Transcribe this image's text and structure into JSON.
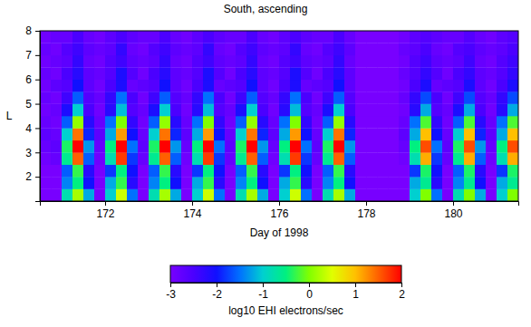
{
  "chart_data": {
    "type": "heatmap",
    "title": "South, ascending",
    "x_label": "Day of 1998",
    "y_label": "L",
    "xlim": [
      170.5,
      181.5
    ],
    "ylim": [
      1,
      8
    ],
    "xticks": [
      172,
      174,
      176,
      178,
      180
    ],
    "yticks": [
      2,
      3,
      4,
      5,
      6,
      7,
      8
    ],
    "x_edges": [
      170.5,
      170.75,
      171,
      171.25,
      171.5,
      171.75,
      172,
      172.25,
      172.5,
      172.75,
      173,
      173.25,
      173.5,
      173.75,
      174,
      174.25,
      174.5,
      174.75,
      175,
      175.25,
      175.5,
      175.75,
      176,
      176.25,
      176.5,
      176.75,
      177,
      177.25,
      177.5,
      177.75,
      178,
      178.25,
      178.5,
      178.75,
      179,
      179.25,
      179.5,
      179.75,
      180,
      180.25,
      180.5,
      180.75,
      181,
      181.25,
      181.5
    ],
    "y_edges": [
      1,
      1.5,
      2,
      2.5,
      3,
      3.5,
      4,
      4.5,
      5,
      5.5,
      6,
      6.5,
      7,
      7.5,
      8
    ],
    "cells": [
      [
        -3,
        -3,
        -3,
        -2.9,
        -2.8,
        -2.7,
        -2.8,
        -2.9,
        -2.8,
        -2.9,
        -2.8,
        -2.9,
        -2.8,
        -2.9
      ],
      [
        -3,
        -3,
        -3,
        -2.8,
        -2.7,
        -2.8,
        -2.9,
        -2.8,
        -2.9,
        -2.7,
        -2.9,
        -2.8,
        -2.9,
        -2.8
      ],
      [
        -0.8,
        -1.4,
        -1.6,
        -0.6,
        -0.4,
        -1.0,
        -1.6,
        -2.1,
        -2.4,
        -2.6,
        -2.5,
        -2.7,
        -2.6,
        -2.8
      ],
      [
        0.2,
        -0.5,
        -0.3,
        1.5,
        2.0,
        1.4,
        0.1,
        -1.0,
        -1.6,
        -2.0,
        -2.2,
        -2.3,
        -2.4,
        -2.5
      ],
      [
        -1.2,
        -2.0,
        -2.2,
        -1.6,
        -1.3,
        -1.9,
        -2.2,
        -2.5,
        -2.6,
        -2.7,
        -2.7,
        -2.8,
        -2.7,
        -2.8
      ],
      [
        -3,
        -3,
        -3,
        -2.9,
        -2.8,
        -2.7,
        -2.8,
        -2.9,
        -2.8,
        -2.9,
        -2.8,
        -2.9,
        -2.8,
        -2.9
      ],
      [
        -1.0,
        -1.2,
        -1.8,
        -0.8,
        -0.5,
        -1.2,
        -1.5,
        -2.2,
        -2.3,
        -2.5,
        -2.6,
        -2.6,
        -2.7,
        -2.7
      ],
      [
        0.4,
        -0.3,
        -0.5,
        1.7,
        2.0,
        1.2,
        0.0,
        -1.1,
        -1.5,
        -2.1,
        -2.1,
        -2.4,
        -2.3,
        -2.5
      ],
      [
        -1.5,
        -2.2,
        -2.0,
        -1.8,
        -1.5,
        -2.0,
        -2.3,
        -2.6,
        -2.5,
        -2.8,
        -2.6,
        -2.7,
        -2.8,
        -2.7
      ],
      [
        -3,
        -3,
        -3,
        -2.8,
        -2.7,
        -2.8,
        -2.9,
        -2.8,
        -2.9,
        -2.7,
        -2.9,
        -2.8,
        -2.9,
        -2.8
      ],
      [
        -0.8,
        -1.4,
        -1.6,
        -0.6,
        -0.4,
        -1.0,
        -1.6,
        -2.1,
        -2.4,
        -2.6,
        -2.5,
        -2.7,
        -2.6,
        -2.8
      ],
      [
        0.2,
        -0.5,
        -0.3,
        1.5,
        2.0,
        1.4,
        0.1,
        -1.0,
        -1.6,
        -2.0,
        -2.2,
        -2.3,
        -2.4,
        -2.5
      ],
      [
        -1.2,
        -2.0,
        -2.2,
        -1.6,
        -1.3,
        -1.9,
        -2.2,
        -2.5,
        -2.6,
        -2.7,
        -2.7,
        -2.8,
        -2.7,
        -2.8
      ],
      [
        -3,
        -3,
        -3,
        -2.9,
        -2.8,
        -2.7,
        -2.8,
        -2.9,
        -2.8,
        -2.9,
        -2.8,
        -2.9,
        -2.8,
        -2.9
      ],
      [
        -1.0,
        -1.2,
        -1.8,
        -0.8,
        -0.5,
        -1.2,
        -1.5,
        -2.2,
        -2.3,
        -2.5,
        -2.6,
        -2.6,
        -2.7,
        -2.7
      ],
      [
        0.4,
        -0.3,
        -0.5,
        1.7,
        2.0,
        1.2,
        0.0,
        -1.1,
        -1.5,
        -2.1,
        -2.1,
        -2.4,
        -2.3,
        -2.5
      ],
      [
        -1.5,
        -2.2,
        -2.0,
        -1.8,
        -1.5,
        -2.0,
        -2.3,
        -2.6,
        -2.5,
        -2.8,
        -2.6,
        -2.7,
        -2.8,
        -2.7
      ],
      [
        -3,
        -3,
        -3,
        -2.8,
        -2.7,
        -2.8,
        -2.9,
        -2.8,
        -2.9,
        -2.7,
        -2.9,
        -2.8,
        -2.9,
        -2.8
      ],
      [
        -0.8,
        -1.4,
        -1.6,
        -0.6,
        -0.4,
        -1.0,
        -1.6,
        -2.1,
        -2.4,
        -2.6,
        -2.5,
        -2.7,
        -2.6,
        -2.8
      ],
      [
        0.2,
        -0.5,
        -0.3,
        1.5,
        2.0,
        1.4,
        0.1,
        -1.0,
        -1.6,
        -2.0,
        -2.2,
        -2.3,
        -2.4,
        -2.5
      ],
      [
        -1.2,
        -2.0,
        -2.2,
        -1.6,
        -1.3,
        -1.9,
        -2.2,
        -2.5,
        -2.6,
        -2.7,
        -2.7,
        -2.8,
        -2.7,
        -2.8
      ],
      [
        -3,
        -3,
        -3,
        -2.9,
        -2.8,
        -2.7,
        -2.8,
        -2.9,
        -2.8,
        -2.9,
        -2.8,
        -2.9,
        -2.8,
        -2.9
      ],
      [
        -1.0,
        -1.2,
        -1.8,
        -0.8,
        -0.5,
        -1.2,
        -1.5,
        -2.2,
        -2.3,
        -2.5,
        -2.6,
        -2.6,
        -2.7,
        -2.7
      ],
      [
        0.4,
        -0.3,
        -0.5,
        1.7,
        2.0,
        1.2,
        0.0,
        -1.1,
        -1.5,
        -2.1,
        -2.1,
        -2.4,
        -2.3,
        -2.5
      ],
      [
        -1.5,
        -2.2,
        -2.0,
        -1.8,
        -1.5,
        -2.0,
        -2.3,
        -2.6,
        -2.5,
        -2.8,
        -2.6,
        -2.7,
        -2.8,
        -2.7
      ],
      [
        -3,
        -3,
        -3,
        -2.8,
        -2.7,
        -2.8,
        -2.9,
        -2.8,
        -2.9,
        -2.7,
        -2.9,
        -2.8,
        -2.9,
        -2.8
      ],
      [
        -0.8,
        -1.4,
        -1.6,
        -0.6,
        -0.4,
        -1.0,
        -1.6,
        -2.1,
        -2.4,
        -2.6,
        -2.5,
        -2.7,
        -2.6,
        -2.8
      ],
      [
        0.2,
        -0.5,
        -0.3,
        1.5,
        2.0,
        1.4,
        0.1,
        -1.0,
        -1.6,
        -2.0,
        -2.2,
        -2.3,
        -2.4,
        -2.5
      ],
      [
        -1.2,
        -2.0,
        -2.2,
        -1.6,
        -1.3,
        -1.9,
        -2.2,
        -2.5,
        -2.6,
        -2.7,
        -2.7,
        -2.8,
        -2.7,
        -2.8
      ],
      [
        -3,
        -3,
        -3,
        -3,
        -3,
        -3,
        -3,
        -3,
        -3,
        -3,
        -3,
        -3,
        -3,
        -3
      ],
      [
        -3,
        -3,
        -3,
        -3,
        -3,
        -3,
        -3,
        -3,
        -3,
        -3,
        -3,
        -3,
        -3,
        -3
      ],
      [
        -3,
        -3,
        -3,
        -3,
        -3,
        -3,
        -3,
        -3,
        -3,
        -3,
        -3,
        -3,
        -3,
        -3
      ],
      [
        -3,
        -3,
        -3,
        -3,
        -3,
        -3,
        -3,
        -3,
        -3,
        -3,
        -3,
        -3,
        -3,
        -3
      ],
      [
        -3,
        -3,
        -3,
        -2.9,
        -2.8,
        -2.7,
        -2.8,
        -2.9,
        -2.8,
        -2.9,
        -2.8,
        -2.9,
        -2.8,
        -2.9
      ],
      [
        -1.0,
        -1.2,
        -1.8,
        -0.8,
        -0.5,
        -1.2,
        -1.5,
        -2.2,
        -2.3,
        -2.5,
        -2.6,
        -2.6,
        -2.7,
        -2.7
      ],
      [
        0.0,
        -0.6,
        -0.4,
        1.1,
        1.6,
        1.0,
        -0.2,
        -1.2,
        -1.7,
        -2.1,
        -2.3,
        -2.4,
        -2.5,
        -2.6
      ],
      [
        -1.5,
        -2.2,
        -2.0,
        -1.8,
        -1.5,
        -2.0,
        -2.3,
        -2.6,
        -2.5,
        -2.8,
        -2.6,
        -2.7,
        -2.8,
        -2.7
      ],
      [
        -3,
        -3,
        -3,
        -2.8,
        -2.7,
        -2.8,
        -2.9,
        -2.8,
        -2.9,
        -2.7,
        -2.9,
        -2.8,
        -2.9,
        -2.8
      ],
      [
        -0.8,
        -1.4,
        -1.6,
        -0.6,
        -0.4,
        -1.0,
        -1.6,
        -2.1,
        -2.4,
        -2.6,
        -2.5,
        -2.7,
        -2.6,
        -2.8
      ],
      [
        0.0,
        -0.6,
        -0.4,
        1.1,
        1.6,
        1.0,
        -0.2,
        -1.2,
        -1.7,
        -2.1,
        -2.3,
        -2.4,
        -2.5,
        -2.6
      ],
      [
        -1.2,
        -2.0,
        -2.2,
        -1.6,
        -1.3,
        -1.9,
        -2.2,
        -2.5,
        -2.6,
        -2.7,
        -2.7,
        -2.8,
        -2.7,
        -2.8
      ],
      [
        -3,
        -3,
        -3,
        -2.9,
        -2.8,
        -2.7,
        -2.8,
        -2.9,
        -2.8,
        -2.9,
        -2.8,
        -2.9,
        -2.8,
        -2.9
      ],
      [
        -1.0,
        -1.2,
        -1.8,
        -0.8,
        -0.5,
        -1.2,
        -1.5,
        -2.2,
        -2.3,
        -2.5,
        -2.6,
        -2.6,
        -2.7,
        -2.7
      ],
      [
        0.0,
        -0.6,
        -0.4,
        1.1,
        1.6,
        1.0,
        -0.2,
        -1.2,
        -1.7,
        -2.1,
        -2.3,
        -2.4,
        -2.5,
        -2.6
      ]
    ],
    "colorbar": {
      "label": "log10 EHI electrons/sec",
      "range": [
        -3,
        2
      ],
      "ticks": [
        -3,
        -2,
        -1,
        0,
        1,
        2
      ]
    }
  }
}
